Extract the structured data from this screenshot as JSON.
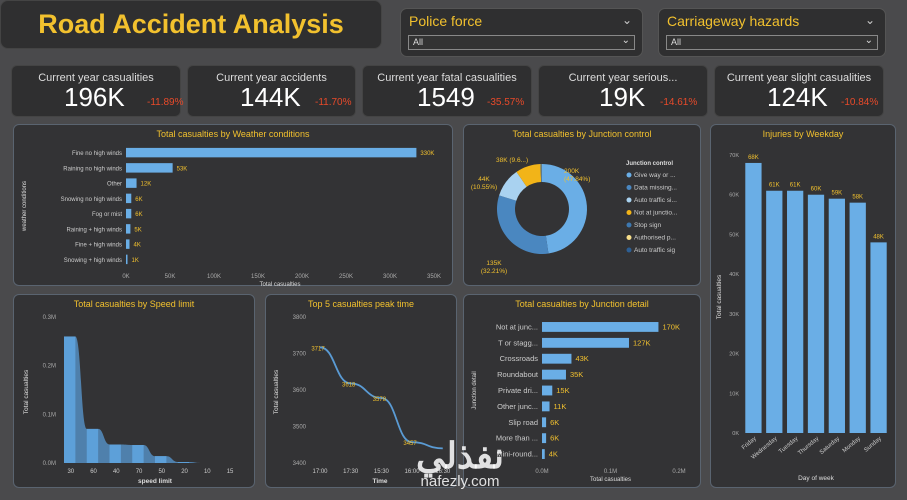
{
  "header": {
    "title": "Road Accident Analysis"
  },
  "slicers": [
    {
      "label": "Police force",
      "value": "All"
    },
    {
      "label": "Carriageway hazards",
      "value": "All"
    }
  ],
  "kpis": [
    {
      "title": "Current year casualities",
      "value": "196K",
      "delta": "-11.89%"
    },
    {
      "title": "Current year accidents",
      "value": "144K",
      "delta": "-11.70%"
    },
    {
      "title": "Current year fatal casualities",
      "value": "1549",
      "delta": "-35.57%"
    },
    {
      "title": "Current year serious...",
      "value": "19K",
      "delta": "-14.61%"
    },
    {
      "title": "Current year slight casualities",
      "value": "124K",
      "delta": "-10.84%"
    }
  ],
  "colors": {
    "accent": "#f2c12e",
    "bar": "#6aaee6",
    "negative": "#e84a2a"
  },
  "watermark": {
    "arabic": "نفذلي",
    "latin": "nafezly.com"
  },
  "chart_data": [
    {
      "id": "weather",
      "type": "bar",
      "orientation": "horizontal",
      "title": "Total casualties by Weather conditions",
      "xlabel": "Total casualties",
      "ylabel": "weather conditions",
      "categories": [
        "Fine no high winds",
        "Raining no high winds",
        "Other",
        "Snowing no high winds",
        "Fog or mist",
        "Raining + high winds",
        "Fine + high winds",
        "Snowing + high winds"
      ],
      "values": [
        330000,
        53000,
        12000,
        6000,
        6000,
        5000,
        4000,
        1000
      ],
      "labels": [
        "330K",
        "53K",
        "12K",
        "6K",
        "6K",
        "5K",
        "4K",
        "1K"
      ],
      "xticks": [
        "0K",
        "50K",
        "100K",
        "150K",
        "200K",
        "250K",
        "300K",
        "350K"
      ],
      "xlim": [
        0,
        350000
      ]
    },
    {
      "id": "junction_control",
      "type": "pie",
      "donut": true,
      "title": "Total casualties by Junction control",
      "legend_title": "Junction control",
      "legend_position": "right",
      "slices": [
        {
          "name": "Give way or ...",
          "value": 200000,
          "label": "200K",
          "pct": "(47.84%)",
          "color": "#6aaee6"
        },
        {
          "name": "Data missing...",
          "value": 135000,
          "label": "135K",
          "pct": "(32.21%)",
          "color": "#4a87c0"
        },
        {
          "name": "Auto traffic si...",
          "value": 44000,
          "label": "44K",
          "pct": "(10.55%)",
          "color": "#a9d2f0"
        },
        {
          "name": "Not at junctio...",
          "value": 38000,
          "label": "38K (9.6...)",
          "pct": "",
          "color": "#f2b418"
        },
        {
          "name": "Stop sign",
          "value": 1200,
          "label": "",
          "pct": "",
          "color": "#3d78b0"
        },
        {
          "name": "Authorised p...",
          "value": 600,
          "label": "",
          "pct": "",
          "color": "#f7de8a"
        },
        {
          "name": "Auto traffic sig",
          "value": 400,
          "label": "",
          "pct": "",
          "color": "#2d5f94"
        }
      ]
    },
    {
      "id": "weekday",
      "type": "bar",
      "title": "Injuries by Weekday",
      "xlabel": "Day of week",
      "ylabel": "Total casualties",
      "categories": [
        "Friday",
        "Wednesday",
        "Tuesday",
        "Thursday",
        "Saturday",
        "Monday",
        "Sunday"
      ],
      "values": [
        68000,
        61000,
        61000,
        60000,
        59000,
        58000,
        48000
      ],
      "labels": [
        "68K",
        "61K",
        "61K",
        "60K",
        "59K",
        "58K",
        "48K"
      ],
      "yticks": [
        "0K",
        "10K",
        "20K",
        "30K",
        "40K",
        "50K",
        "60K",
        "70K"
      ],
      "ylim": [
        0,
        70000
      ]
    },
    {
      "id": "speed_limit",
      "type": "area",
      "title": "Total casualties by Speed limit",
      "xlabel": "speed limit",
      "ylabel": "Total casualties",
      "categories": [
        "30",
        "60",
        "40",
        "70",
        "50",
        "20",
        "10",
        "15"
      ],
      "values": [
        260000,
        70000,
        38000,
        37000,
        14000,
        2000,
        0,
        0
      ],
      "yticks": [
        "0.0M",
        "0.1M",
        "0.2M",
        "0.3M"
      ],
      "ylim": [
        0,
        300000
      ]
    },
    {
      "id": "peak_time",
      "type": "line",
      "title": "Top 5 casualties peak time",
      "xlabel": "Time",
      "ylabel": "Total casualties",
      "x": [
        "17:00",
        "17:30",
        "15:30",
        "16:00",
        "16:30"
      ],
      "xticks": [
        "17:00",
        "17:30",
        "15:30",
        "16:00",
        "16:30"
      ],
      "values": [
        3717,
        3618,
        3578,
        3457,
        3440
      ],
      "labels": [
        "3717",
        "3618",
        "3578",
        "3457",
        ""
      ],
      "yticks": [
        "3400",
        "3500",
        "3600",
        "3700",
        "3800"
      ],
      "ylim": [
        3400,
        3800
      ]
    },
    {
      "id": "junction_detail",
      "type": "bar",
      "orientation": "horizontal",
      "title": "Total casualties by Junction detail",
      "xlabel": "Total casualties",
      "ylabel": "Junction detail",
      "categories": [
        "Not at junc...",
        "T or stagg...",
        "Crossroads",
        "Roundabout",
        "Private dri...",
        "Other junc...",
        "Slip road",
        "More than ...",
        "Mini-round..."
      ],
      "values": [
        170000,
        127000,
        43000,
        35000,
        15000,
        11000,
        6000,
        6000,
        4000
      ],
      "labels": [
        "170K",
        "127K",
        "43K",
        "35K",
        "15K",
        "11K",
        "6K",
        "6K",
        "4K"
      ],
      "xticks": [
        "0.0M",
        "0.1M",
        "0.2M"
      ],
      "xlim": [
        0,
        200000
      ]
    }
  ]
}
